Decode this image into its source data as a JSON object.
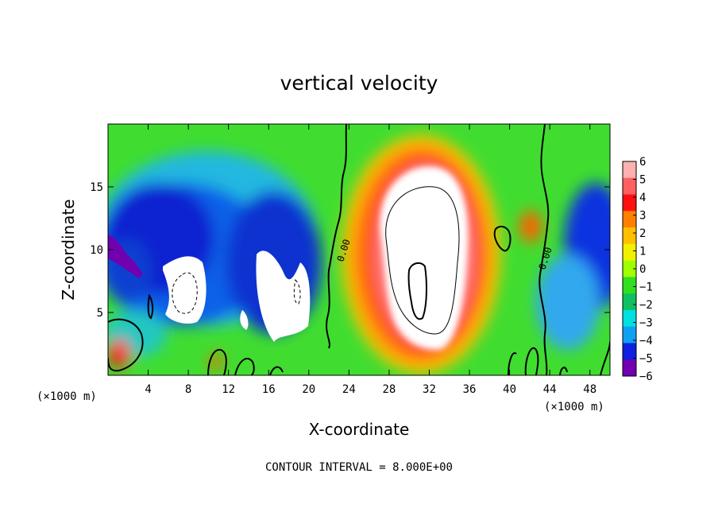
{
  "chart_data": {
    "type": "heatmap",
    "title": "vertical velocity",
    "xlabel": "X-coordinate",
    "ylabel": "Z-coordinate",
    "x_unit_label": "(×1000 m)",
    "y_unit_label": "(×1000 m)",
    "xlim": [
      0,
      50
    ],
    "ylim": [
      0,
      20
    ],
    "x_ticks": [
      4,
      8,
      12,
      16,
      20,
      24,
      28,
      32,
      36,
      40,
      44,
      48
    ],
    "y_ticks": [
      5,
      10,
      15
    ],
    "colorbar": {
      "ticks": [
        6,
        5,
        4,
        3,
        2,
        1,
        0,
        -1,
        -2,
        -3,
        -4,
        -5,
        -6
      ],
      "colors": [
        "#ffb0b0",
        "#ff6060",
        "#ff1010",
        "#ff8000",
        "#ffc000",
        "#f0f000",
        "#a0ff00",
        "#30e020",
        "#10c060",
        "#00e0e0",
        "#10a0f0",
        "#1020e0",
        "#7000b0"
      ],
      "range": [
        -6,
        6
      ]
    },
    "contour_interval_text": "CONTOUR INTERVAL = 8.000E+00",
    "contour_labels": [
      "0.00",
      "0.00"
    ],
    "features": [
      {
        "name": "updraft core",
        "x": 31,
        "z": 9,
        "value": 16
      },
      {
        "name": "downdraft",
        "x": 8,
        "z": 7,
        "value": -8
      },
      {
        "name": "downdraft",
        "x": 17,
        "z": 8,
        "value": -8
      },
      {
        "name": "weak updraft",
        "x": 41,
        "z": 11,
        "value": 4
      }
    ],
    "grid": false
  }
}
